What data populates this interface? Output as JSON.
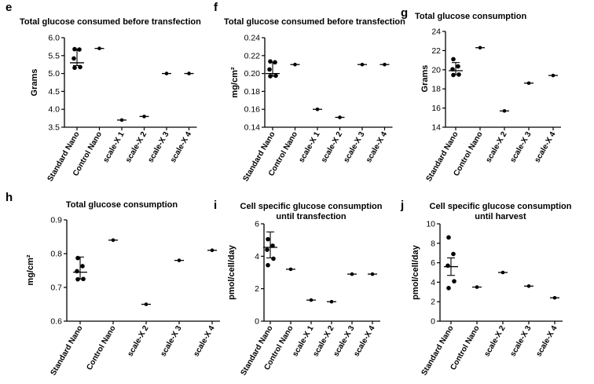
{
  "chart_data": [
    {
      "type": "scatter",
      "panel": "e",
      "title": "Total glucose consumed before transfection",
      "ylabel": "Grams",
      "ylim": [
        3.5,
        6.0
      ],
      "yticks": [
        "6.0",
        "5.5",
        "5.0",
        "4.5",
        "4.0",
        "3.5"
      ],
      "categories": [
        "Standard Nano",
        "Control Nano",
        "scale-X 1",
        "scale-X 2",
        "scale-X 3",
        "scale-X 4"
      ],
      "points": [
        [
          5.68,
          5.67,
          5.42,
          5.18,
          5.16
        ],
        [
          5.7
        ],
        [
          3.7
        ],
        [
          3.8
        ],
        [
          5.0
        ],
        [
          5.0
        ]
      ],
      "center": [
        5.3,
        5.7,
        3.7,
        3.8,
        5.0,
        5.0
      ],
      "error": [
        [
          5.22,
          5.68
        ],
        null,
        null,
        null,
        null,
        null
      ]
    },
    {
      "type": "scatter",
      "panel": "f",
      "title": "Total glucose consumed before transfection",
      "ylabel": "mg/cm²",
      "ylim": [
        0.14,
        0.24
      ],
      "yticks": [
        "0.24",
        "0.22",
        "0.20",
        "0.18",
        "0.16",
        "0.14"
      ],
      "categories": [
        "Standard Nano",
        "Control Nano",
        "scale-X 1",
        "scale-X 2",
        "scale-X 3",
        "scale-X 4"
      ],
      "points": [
        [
          0.2135,
          0.2125,
          0.2045,
          0.1975,
          0.197
        ],
        [
          0.21
        ],
        [
          0.16
        ],
        [
          0.151
        ],
        [
          0.21
        ],
        [
          0.21
        ]
      ],
      "center": [
        0.2,
        0.21,
        0.16,
        0.151,
        0.21,
        0.21
      ],
      "error": [
        [
          0.197,
          0.2125
        ],
        null,
        null,
        null,
        null,
        null
      ]
    },
    {
      "type": "scatter",
      "panel": "g",
      "title": "Total glucose consumption",
      "ylabel": "Grams",
      "ylim": [
        14,
        24
      ],
      "yticks": [
        "24",
        "22",
        "20",
        "18",
        "16",
        "14"
      ],
      "categories": [
        "Standard Nano",
        "Control Nano",
        "scale-X 2",
        "scale-X 3",
        "scale-X 4"
      ],
      "points": [
        [
          21.1,
          20.35,
          20.05,
          19.5,
          19.45
        ],
        [
          22.3
        ],
        [
          15.7
        ],
        [
          18.6
        ],
        [
          19.4
        ]
      ],
      "center": [
        19.9,
        22.3,
        15.7,
        18.6,
        19.4
      ],
      "error": [
        [
          19.5,
          20.75
        ],
        null,
        null,
        null,
        null
      ]
    },
    {
      "type": "scatter",
      "panel": "h",
      "title": "Total glucose consumption",
      "ylabel": "mg/cm²",
      "ylim": [
        0.6,
        0.9
      ],
      "yticks": [
        "0.9",
        "0.8",
        "0.7",
        "0.6"
      ],
      "categories": [
        "Standard Nano",
        "Control Nano",
        "scale-X 2",
        "scale-X 3",
        "scale-X 4"
      ],
      "points": [
        [
          0.787,
          0.763,
          0.748,
          0.725,
          0.724
        ],
        [
          0.84
        ],
        [
          0.65
        ],
        [
          0.78
        ],
        [
          0.81
        ]
      ],
      "center": [
        0.745,
        0.84,
        0.65,
        0.78,
        0.81
      ],
      "error": [
        [
          0.725,
          0.79
        ],
        null,
        null,
        null,
        null
      ]
    },
    {
      "type": "scatter",
      "panel": "i",
      "title": "Cell specific glucose consumption",
      "title_line2": "until transfection",
      "ylabel": "pmol/cell/day",
      "ylim": [
        0,
        6
      ],
      "yticks": [
        "6",
        "4",
        "2",
        "0"
      ],
      "categories": [
        "Standard Nano",
        "Control Nano",
        "scale-X 1",
        "scale-X 2",
        "scale-X 3",
        "scale-X 4"
      ],
      "points": [
        [
          5.05,
          4.65,
          4.4,
          3.85,
          3.45
        ],
        [
          3.2
        ],
        [
          1.3
        ],
        [
          1.2
        ],
        [
          2.9
        ],
        [
          2.9
        ]
      ],
      "center": [
        4.55,
        3.2,
        1.3,
        1.2,
        2.9,
        2.9
      ],
      "error": [
        [
          3.9,
          5.5
        ],
        null,
        null,
        null,
        null,
        null
      ]
    },
    {
      "type": "scatter",
      "panel": "j",
      "title": "Cell specific glucose consumption",
      "title_line2": "until harvest",
      "ylabel": "pmol/cell/day",
      "ylim": [
        0,
        10
      ],
      "yticks": [
        "10",
        "8",
        "6",
        "4",
        "2",
        "0"
      ],
      "categories": [
        "Standard Nano",
        "Control Nano",
        "scale-X 2",
        "scale-X 3",
        "scale-X 4"
      ],
      "points": [
        [
          8.6,
          6.9,
          5.7,
          4.1,
          3.4
        ],
        [
          3.5
        ],
        [
          5.0
        ],
        [
          3.6
        ],
        [
          2.4
        ]
      ],
      "center": [
        5.6,
        3.5,
        5.0,
        3.6,
        2.4
      ],
      "error": [
        [
          4.7,
          6.5
        ],
        null,
        null,
        null,
        null
      ]
    }
  ]
}
